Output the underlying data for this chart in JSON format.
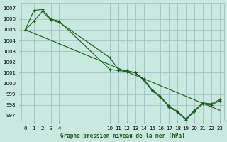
{
  "title": "Graphe pression niveau de la mer (hPa)",
  "bg_color": "#c8e8e0",
  "grid_color": "#99bbbb",
  "line_color": "#1a5c1a",
  "ylim": [
    996.5,
    1007.5
  ],
  "xlim": [
    -0.5,
    23.5
  ],
  "yticks": [
    997,
    998,
    999,
    1000,
    1001,
    1002,
    1003,
    1004,
    1005,
    1006,
    1007
  ],
  "xtick_positions": [
    0,
    1,
    2,
    3,
    4,
    10,
    11,
    12,
    13,
    14,
    15,
    16,
    17,
    18,
    19,
    20,
    21,
    22,
    23
  ],
  "xtick_labels": [
    "0",
    "1",
    "2",
    "3",
    "4",
    "10",
    "11",
    "12",
    "13",
    "14",
    "15",
    "16",
    "17",
    "18",
    "19",
    "20",
    "21",
    "22",
    "23"
  ],
  "line_straight": {
    "x": [
      0,
      23
    ],
    "y": [
      1005.0,
      997.5
    ]
  },
  "line1": {
    "x": [
      0,
      1,
      2,
      3,
      4,
      10,
      11,
      12,
      13,
      14,
      15,
      16,
      17,
      18,
      19,
      20,
      21,
      22,
      23
    ],
    "y": [
      1005.0,
      1006.8,
      1006.9,
      1006.0,
      1005.8,
      1001.3,
      1001.2,
      1001.1,
      1001.0,
      1000.4,
      999.4,
      998.8,
      997.9,
      997.4,
      996.7,
      997.5,
      998.2,
      998.1,
      998.5
    ]
  },
  "line2": {
    "x": [
      0,
      1,
      2,
      3,
      4,
      10,
      11,
      12,
      13,
      14,
      15,
      16,
      17,
      18,
      19,
      20,
      21,
      22,
      23
    ],
    "y": [
      1005.0,
      1005.8,
      1006.7,
      1005.9,
      1005.7,
      1002.4,
      1001.3,
      1001.2,
      1001.0,
      1000.3,
      999.3,
      998.7,
      997.8,
      997.3,
      996.6,
      997.4,
      998.1,
      998.0,
      998.4
    ]
  }
}
